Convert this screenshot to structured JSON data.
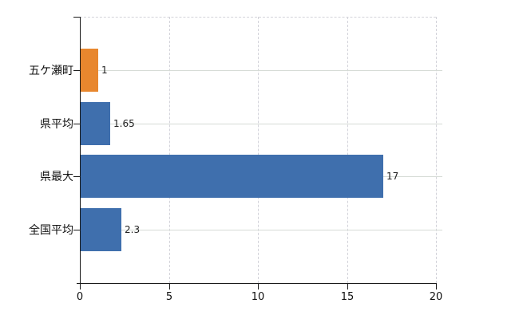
{
  "chart_data": {
    "type": "bar",
    "orientation": "horizontal",
    "title": "",
    "xlabel": "",
    "ylabel": "",
    "categories": [
      "五ケ瀬町",
      "県平均",
      "県最大",
      "全国平均"
    ],
    "values": [
      1,
      1.65,
      17,
      2.3
    ],
    "value_labels": [
      "1",
      "1.65",
      "17",
      "2.3"
    ],
    "bar_colors": [
      "#e8872e",
      "#3f6fad",
      "#3f6fad",
      "#3f6fad"
    ],
    "x_ticks": [
      0,
      5,
      10,
      15,
      20
    ],
    "x_tick_labels": [
      "0",
      "5",
      "10",
      "15",
      "20"
    ],
    "xlim": [
      0,
      20
    ],
    "grid": true,
    "legend": "none",
    "gridline_style": {
      "horizontal": "solid",
      "vertical": "dashed",
      "top_border": "dashed"
    }
  },
  "colors": {
    "background": "#ffffff",
    "axis": "#1a1a1a",
    "grid_horizontal": "#d6dbd6",
    "grid_vertical": "#d3d3da",
    "bar_blue": "#3f6fad",
    "bar_orange": "#e8872e",
    "text": "#111111"
  }
}
